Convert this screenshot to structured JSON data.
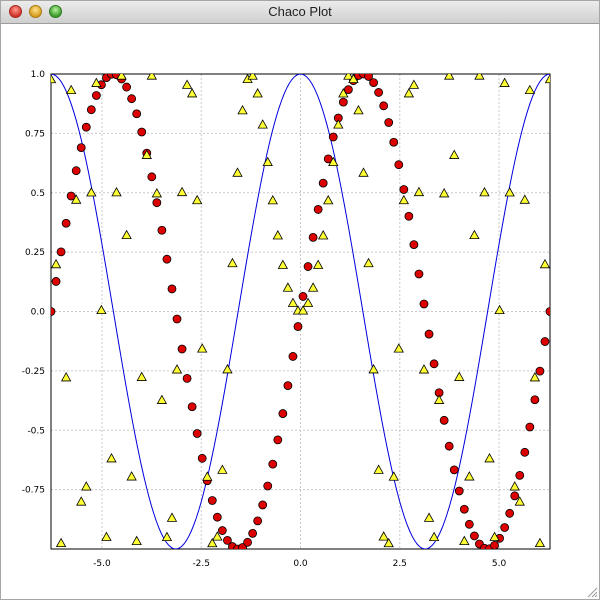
{
  "window": {
    "title": "Chaco Plot"
  },
  "chart_data": {
    "type": "scatter",
    "title": "",
    "xlabel": "",
    "ylabel": "",
    "xlim": [
      -6.2832,
      6.2832
    ],
    "ylim": [
      -1.0,
      1.0
    ],
    "grid": true,
    "x_ticks": [
      -5.0,
      -2.5,
      0.0,
      2.5,
      5.0
    ],
    "x_tick_labels": [
      "-5.0",
      "-2.5",
      "0.0",
      "2.5",
      "5.0"
    ],
    "y_ticks": [
      -0.75,
      -0.5,
      -0.25,
      0.0,
      0.25,
      0.5,
      0.75,
      1.0
    ],
    "y_tick_labels": [
      "-0.75",
      "-0.5",
      "-0.25",
      "0.0",
      "0.25",
      "0.5",
      "0.75",
      "1.0"
    ],
    "series": [
      {
        "kind": "line",
        "function": "cos(x)",
        "color": "#0000dd",
        "points": 200
      },
      {
        "kind": "scatter",
        "marker": "circle",
        "function": "sin(x)",
        "color": "#dd0000",
        "points": 100
      },
      {
        "kind": "scatter",
        "marker": "triangle",
        "function": "sin(x*x)",
        "color": "#ffff33",
        "points": 100
      }
    ]
  }
}
